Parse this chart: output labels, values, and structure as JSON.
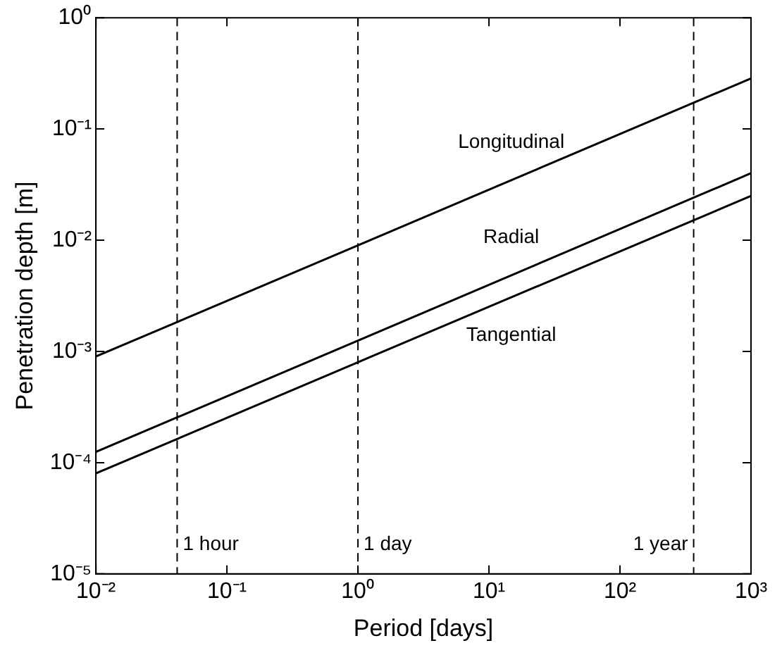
{
  "chart_data": {
    "type": "line",
    "xlabel": "Period [days]",
    "ylabel": "Penetration depth [m]",
    "log": "xy",
    "marker": "none",
    "line_style": "solid",
    "legend": false,
    "grid": false,
    "xlim": [
      0.01,
      1000
    ],
    "ylim": [
      1e-05,
      1
    ],
    "xticks": [
      {
        "value": 0.01,
        "label": "10⁻²"
      },
      {
        "value": 0.1,
        "label": "10⁻¹"
      },
      {
        "value": 1,
        "label": "10⁰"
      },
      {
        "value": 10,
        "label": "10¹"
      },
      {
        "value": 100,
        "label": "10²"
      },
      {
        "value": 1000,
        "label": "10³"
      }
    ],
    "yticks": [
      {
        "value": 1e-05,
        "label": "10⁻⁵"
      },
      {
        "value": 0.0001,
        "label": "10⁻⁴"
      },
      {
        "value": 0.001,
        "label": "10⁻³"
      },
      {
        "value": 0.01,
        "label": "10⁻²"
      },
      {
        "value": 0.1,
        "label": "10⁻¹"
      },
      {
        "value": 1,
        "label": "10⁰"
      }
    ],
    "x": [
      0.01,
      1,
      1000
    ],
    "series": [
      {
        "name": "Longitudinal",
        "color": "#000000",
        "values": [
          0.0009,
          0.009,
          0.285
        ]
      },
      {
        "name": "Radial",
        "color": "#000000",
        "values": [
          0.000125,
          0.00125,
          0.04
        ]
      },
      {
        "name": "Tangential",
        "color": "#000000",
        "values": [
          8e-05,
          0.0008,
          0.025
        ]
      }
    ],
    "ref_lines": [
      {
        "axis": "x",
        "value": 0.0417,
        "label": "1 hour",
        "line_style": "dashed",
        "color": "#000000"
      },
      {
        "axis": "x",
        "value": 1,
        "label": "1 day",
        "line_style": "dashed",
        "color": "#000000"
      },
      {
        "axis": "x",
        "value": 365,
        "label": "1 year",
        "line_style": "dashed",
        "color": "#000000"
      }
    ]
  }
}
